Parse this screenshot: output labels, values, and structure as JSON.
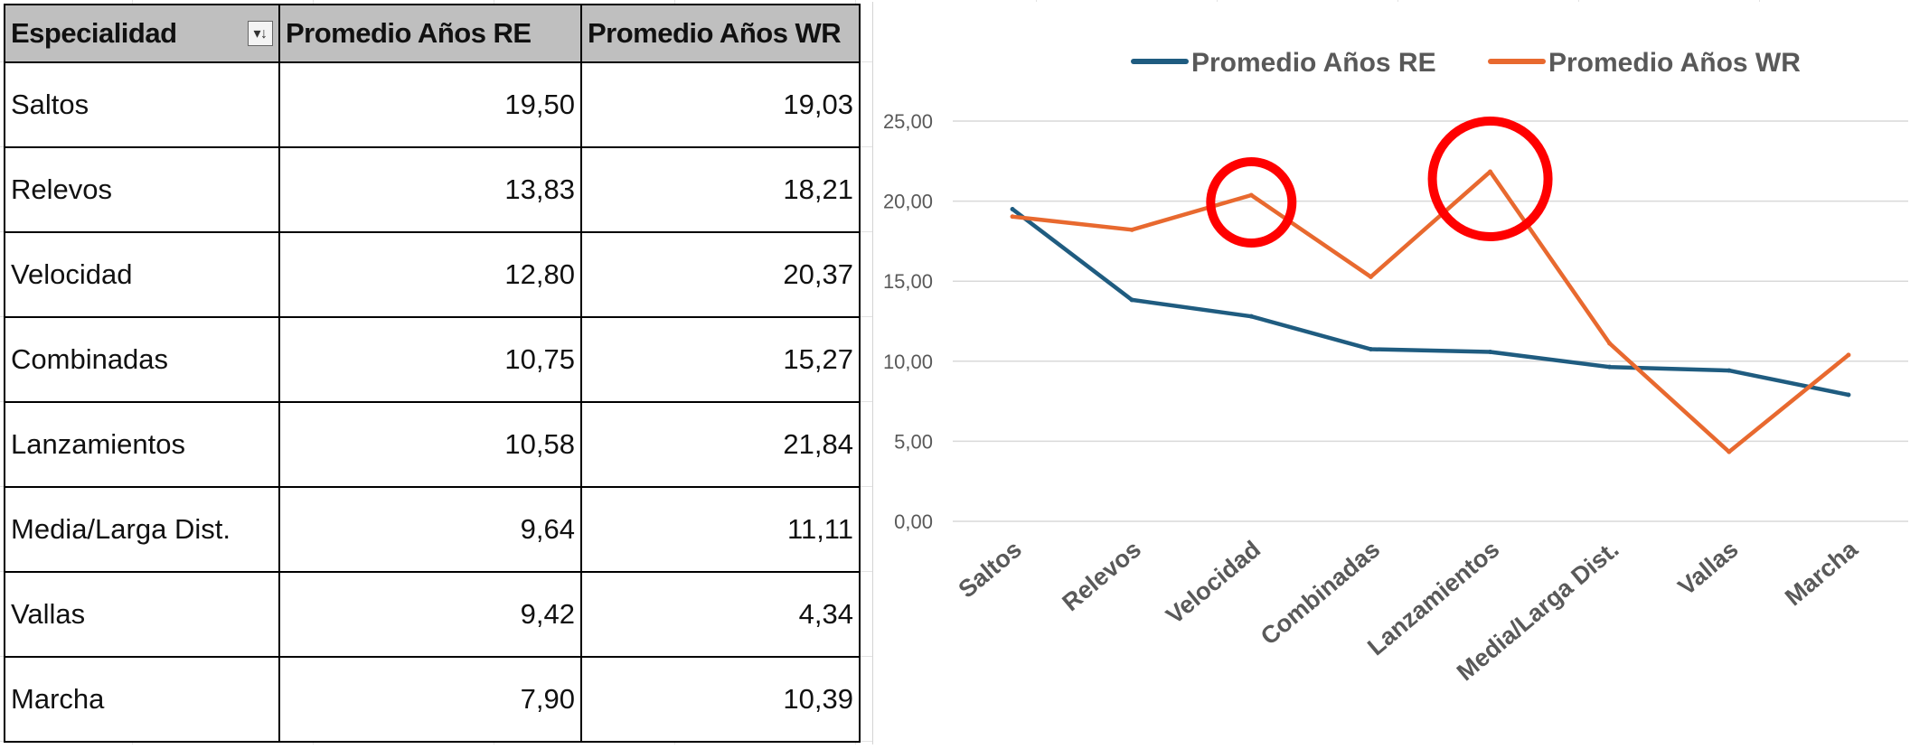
{
  "table": {
    "headers": [
      "Especialidad",
      "Promedio Años RE",
      "Promedio Años WR"
    ],
    "rows": [
      {
        "especialidad": "Saltos",
        "re": "19,50",
        "wr": "19,03"
      },
      {
        "especialidad": "Relevos",
        "re": "13,83",
        "wr": "18,21"
      },
      {
        "especialidad": "Velocidad",
        "re": "12,80",
        "wr": "20,37"
      },
      {
        "especialidad": "Combinadas",
        "re": "10,75",
        "wr": "15,27"
      },
      {
        "especialidad": "Lanzamientos",
        "re": "10,58",
        "wr": "21,84"
      },
      {
        "especialidad": "Media/Larga Dist.",
        "re": "9,64",
        "wr": "11,11"
      },
      {
        "especialidad": "Vallas",
        "re": "9,42",
        "wr": "4,34"
      },
      {
        "especialidad": "Marcha",
        "re": "7,90",
        "wr": "10,39"
      }
    ]
  },
  "icons": {
    "filter": "filter-sort-icon"
  },
  "colors": {
    "re": "#1f5c80",
    "wr": "#e8692f",
    "highlight": "#ff0000",
    "header_bg": "#bfbfbf"
  },
  "chart_data": {
    "type": "line",
    "categories": [
      "Saltos",
      "Relevos",
      "Velocidad",
      "Combinadas",
      "Lanzamientos",
      "Media/Larga Dist.",
      "Vallas",
      "Marcha"
    ],
    "series": [
      {
        "name": "Promedio Años RE",
        "values": [
          19.5,
          13.83,
          12.8,
          10.75,
          10.58,
          9.64,
          9.42,
          7.9
        ],
        "color": "#1f5c80"
      },
      {
        "name": "Promedio Años WR",
        "values": [
          19.03,
          18.21,
          20.37,
          15.27,
          21.84,
          11.11,
          4.34,
          10.39
        ],
        "color": "#e8692f"
      }
    ],
    "ylim": [
      0,
      25
    ],
    "yticks": [
      "0,00",
      "5,00",
      "10,00",
      "15,00",
      "20,00",
      "25,00"
    ],
    "grid": true,
    "legend": "top",
    "highlights": [
      {
        "category": "Velocidad",
        "series": "Promedio Años WR"
      },
      {
        "category": "Lanzamientos",
        "series": "Promedio Años WR"
      }
    ]
  }
}
